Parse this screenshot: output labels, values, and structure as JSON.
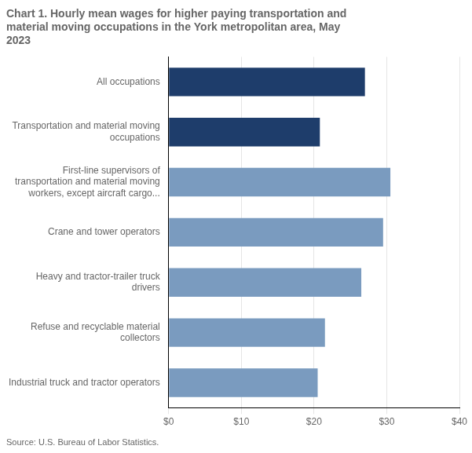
{
  "chart_data": {
    "type": "bar",
    "orientation": "horizontal",
    "title": "Chart 1. Hourly mean wages for higher paying transportation and\nmaterial moving occupations in the York metropolitan area, May\n2023",
    "source": "Source: U.S. Bureau of Labor Statistics.",
    "categories": [
      "Industrial truck and tractor operators",
      "Refuse and recyclable material\ncollectors",
      "Heavy and tractor-trailer truck\ndrivers",
      "Crane and tower operators",
      "First-line supervisors of\ntransportation and material moving\nworkers, except aircraft cargo...",
      "Transportation and material moving\noccupations",
      "All occupations"
    ],
    "values": [
      20.5,
      21.5,
      26.5,
      29.5,
      30.5,
      20.8,
      27.0
    ],
    "colors": [
      "#7a9bbf",
      "#7a9bbf",
      "#7a9bbf",
      "#7a9bbf",
      "#7a9bbf",
      "#1e3d6b",
      "#1e3d6b"
    ],
    "xlim": [
      0,
      40
    ],
    "xticks": [
      {
        "value": 0,
        "label": "$0"
      },
      {
        "value": 10,
        "label": "$10"
      },
      {
        "value": 20,
        "label": "$20"
      },
      {
        "value": 30,
        "label": "$30"
      },
      {
        "value": 40,
        "label": "$40"
      }
    ],
    "grid": true
  }
}
